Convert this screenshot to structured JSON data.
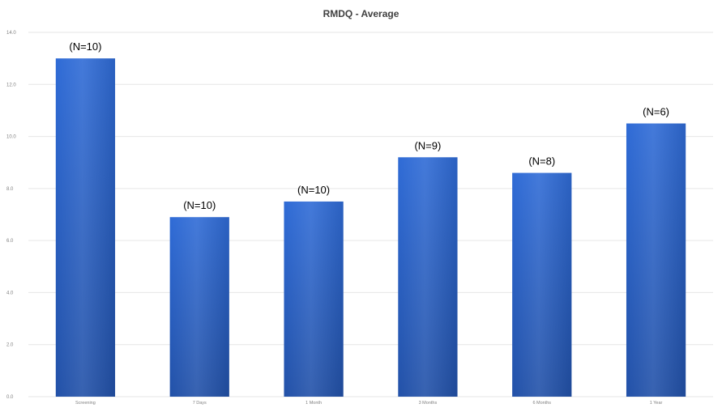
{
  "chart_data": {
    "type": "bar",
    "title": "RMDQ - Average",
    "xlabel": "",
    "ylabel": "",
    "categories": [
      "Screening",
      "7 Days",
      "1 Month",
      "3 Months",
      "6 Months",
      "1 Year"
    ],
    "values": [
      13.0,
      6.9,
      7.5,
      9.2,
      8.6,
      10.5
    ],
    "data_labels": [
      "(N=10)",
      "(N=10)",
      "(N=10)",
      "(N=9)",
      "(N=8)",
      "(N=6)"
    ],
    "ylim": [
      0,
      14
    ],
    "yticks": [
      "0.0",
      "2.0",
      "4.0",
      "6.0",
      "8.0",
      "10.0",
      "12.0",
      "14.0"
    ],
    "grid": true,
    "legend": "none",
    "bar_color": "#2f6bd6",
    "bar_color_dark": "#2251a8"
  }
}
